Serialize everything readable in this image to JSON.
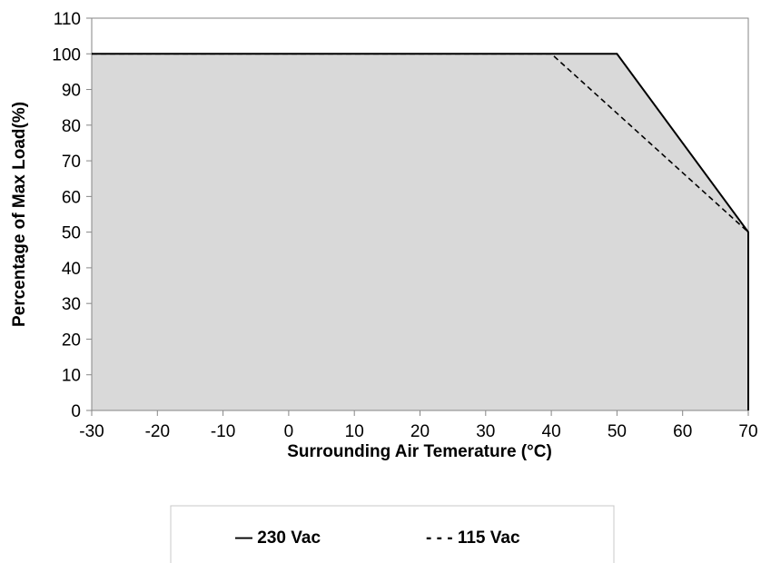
{
  "chart_data": {
    "type": "area",
    "xlabel": "Surrounding Air Temerature (°C)",
    "ylabel": "Percentage of Max Load(%)",
    "xlim": [
      -30,
      70
    ],
    "ylim": [
      0,
      110
    ],
    "x_ticks": [
      "-30",
      "-20",
      "-10",
      "0",
      "10",
      "20",
      "30",
      "40",
      "50",
      "60",
      "70"
    ],
    "y_ticks": [
      "0",
      "10",
      "20",
      "30",
      "40",
      "50",
      "60",
      "70",
      "80",
      "90",
      "100",
      "110"
    ],
    "grid": false,
    "legend_position": "bottom",
    "series": [
      {
        "name": "230 Vac",
        "line_style": "solid",
        "x": [
          -30,
          50,
          70,
          70
        ],
        "y": [
          100,
          100,
          50,
          0
        ]
      },
      {
        "name": "115 Vac",
        "line_style": "dashed",
        "x": [
          -30,
          40,
          70
        ],
        "y": [
          100,
          100,
          50
        ]
      }
    ],
    "fill": {
      "series": "230 Vac",
      "color": "#d9d9d9"
    },
    "legend_labels": [
      "— 230 Vac",
      "- - - 115 Vac"
    ]
  }
}
